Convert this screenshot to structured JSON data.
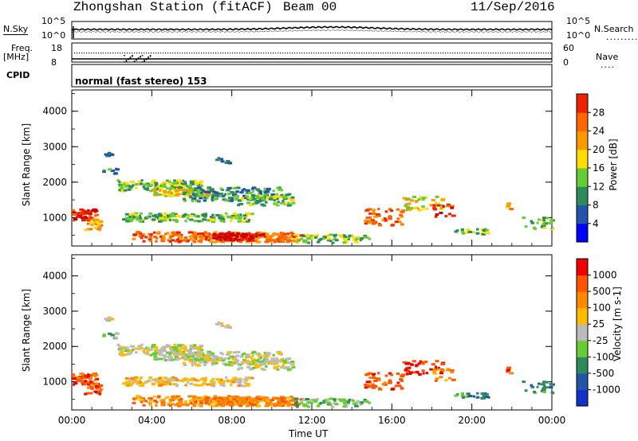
{
  "header": {
    "station": "Zhongshan Station (fitACF)",
    "beam": "Beam 00",
    "date": "11/Sep/2016"
  },
  "top_panels": {
    "nsky_label": "N.Sky",
    "nsky_top": "10^5",
    "nsky_bottom": "10^0",
    "nsearch_label": "N.Search",
    "nsearch_top": "10^5",
    "nsearch_bottom": "10^0",
    "freq_label": "Freq.",
    "freq_unit": "[MHz]",
    "freq_top": "18",
    "freq_bottom": "8",
    "nave_label": "Nave",
    "nave_top": "60",
    "nave_bottom": "0",
    "cpid_label": "CPID",
    "cpid_text": "normal (fast stereo) 153"
  },
  "colors": {
    "power": [
      "#0000ff",
      "#2255aa",
      "#2e8a5a",
      "#66cc33",
      "#ffdd00",
      "#ff9900",
      "#ff6600",
      "#ee2200",
      "#cc0000"
    ],
    "velocity": [
      "#ee0000",
      "#ff5500",
      "#ff8800",
      "#ffbb00",
      "#bbbbbb",
      "#66cc33",
      "#2e8a5a",
      "#2255aa",
      "#1133cc"
    ]
  },
  "chart_data": [
    {
      "type": "heatmap",
      "name": "power",
      "ylabel": "Slant Range [km]",
      "ylim": [
        200,
        4600
      ],
      "yticks": [
        "1000",
        "2000",
        "3000",
        "4000"
      ],
      "colorbar_label": "Power [dB]",
      "colorbar_ticks": [
        "4",
        "8",
        "12",
        "16",
        "20",
        "24",
        "28"
      ],
      "colorbar_range": [
        0,
        32
      ]
    },
    {
      "type": "heatmap",
      "name": "velocity",
      "ylabel": "Slant Range [km]",
      "ylim": [
        200,
        4600
      ],
      "yticks": [
        "1000",
        "2000",
        "3000",
        "4000"
      ],
      "colorbar_label": "Velocity [m s-1]",
      "colorbar_ticks": [
        "1000",
        "500",
        "100",
        "25",
        "-25",
        "-100",
        "-500",
        "-1000"
      ],
      "xlabel": "Time UT",
      "xticks": [
        "00:00",
        "04:00",
        "08:00",
        "12:00",
        "16:00",
        "20:00",
        "00:00"
      ],
      "xlim_hours": [
        0,
        24
      ]
    }
  ]
}
